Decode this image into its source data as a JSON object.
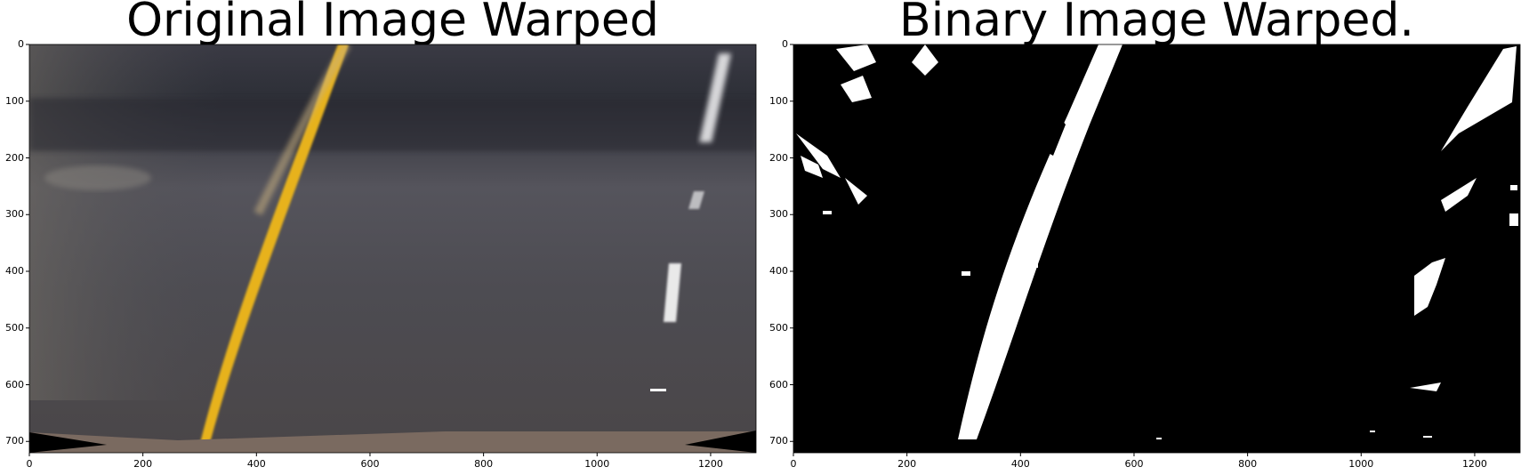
{
  "figure": {
    "panels": [
      {
        "title": "Original Image Warped",
        "content": "warped road photo",
        "x_ticks": [
          "0",
          "200",
          "400",
          "600",
          "800",
          "1000",
          "1200"
        ],
        "y_ticks": [
          "0",
          "100",
          "200",
          "300",
          "400",
          "500",
          "600",
          "700"
        ],
        "x_tick_values": [
          0,
          200,
          400,
          600,
          800,
          1000,
          1200
        ],
        "y_tick_values": [
          0,
          100,
          200,
          300,
          400,
          500,
          600,
          700
        ],
        "xlim": [
          0,
          1280
        ],
        "ylim": [
          720,
          0
        ]
      },
      {
        "title": "Binary Image Warped.",
        "content": "binary threshold image",
        "x_ticks": [
          "0",
          "200",
          "400",
          "600",
          "800",
          "1000",
          "1200"
        ],
        "y_ticks": [
          "0",
          "100",
          "200",
          "300",
          "400",
          "500",
          "600",
          "700"
        ],
        "x_tick_values": [
          0,
          200,
          400,
          600,
          800,
          1000,
          1200
        ],
        "y_tick_values": [
          0,
          100,
          200,
          300,
          400,
          500,
          600,
          700
        ],
        "xlim": [
          0,
          1280
        ],
        "ylim": [
          720,
          0
        ]
      }
    ],
    "colors": {
      "road": "#4a4a50",
      "yellow_line": "#e8b020",
      "binary_bg": "#000000",
      "binary_fg": "#ffffff"
    }
  }
}
